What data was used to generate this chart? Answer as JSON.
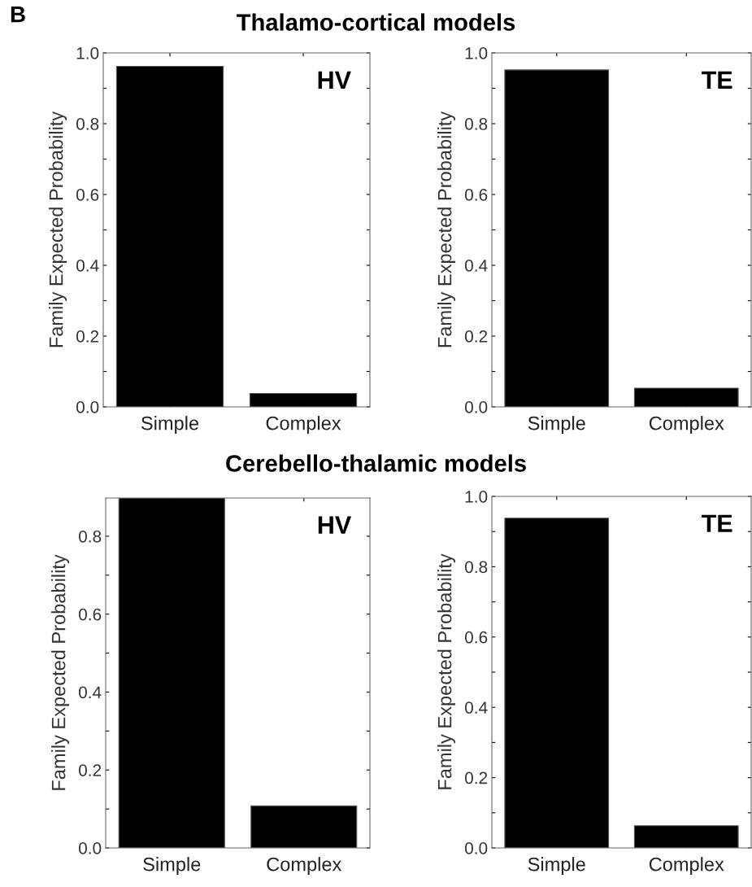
{
  "chart_data": [
    {
      "type": "bar",
      "title": "Thalamo-cortical models",
      "ylabel": "Family Expected Probability",
      "categories": [
        "Simple",
        "Complex"
      ],
      "values": [
        0.962,
        0.038
      ],
      "color": "#000000",
      "ylim": [
        0,
        1.0
      ],
      "yticks": [
        {
          "value": 0,
          "label": "0.0"
        },
        {
          "value": 0.1,
          "label": null
        },
        0.2,
        {
          "value": 0.3,
          "label": null
        },
        0.4,
        {
          "value": 0.5,
          "label": null
        },
        0.6,
        {
          "value": 0.7,
          "label": null
        },
        0.8,
        {
          "value": 0.9,
          "label": null
        },
        {
          "value": 1,
          "label": "1.0"
        }
      ],
      "annotations": [
        "B",
        "HV"
      ]
    },
    {
      "type": "bar",
      "ylabel": "Family Expected Probability",
      "categories": [
        "Simple",
        "Complex"
      ],
      "values": [
        0.952,
        0.053
      ],
      "color": "#000000",
      "ylim": [
        0,
        1.0
      ],
      "yticks": [
        {
          "value": 0,
          "label": "0.0"
        },
        {
          "value": 0.1,
          "label": null
        },
        0.2,
        {
          "value": 0.3,
          "label": null
        },
        0.4,
        {
          "value": 0.5,
          "label": null
        },
        0.6,
        {
          "value": 0.7,
          "label": null
        },
        0.8,
        {
          "value": 0.9,
          "label": null
        },
        {
          "value": 1,
          "label": "1.0"
        }
      ],
      "annotations": [
        "TE"
      ]
    },
    {
      "type": "bar",
      "title": "Cerebello-thalamic models",
      "ylabel": "Family Expected Probability",
      "categories": [
        "Simple",
        "Complex"
      ],
      "values": [
        0.898,
        0.108
      ],
      "color": "#000000",
      "ylim": [
        0,
        0.898
      ],
      "yticks": [
        {
          "value": 0,
          "label": "0.0"
        },
        {
          "value": 0.1,
          "label": null
        },
        0.2,
        {
          "value": 0.3,
          "label": null
        },
        0.4,
        {
          "value": 0.5,
          "label": null
        },
        0.6,
        {
          "value": 0.7,
          "label": null
        },
        0.8
      ],
      "annotations": [
        "HV"
      ]
    },
    {
      "type": "bar",
      "ylabel": "Family Expected Probability",
      "categories": [
        "Simple",
        "Complex"
      ],
      "values": [
        0.938,
        0.063
      ],
      "color": "#000000",
      "ylim": [
        0,
        1.0
      ],
      "yticks": [
        {
          "value": 0,
          "label": "0.0"
        },
        {
          "value": 0.1,
          "label": null
        },
        0.2,
        {
          "value": 0.3,
          "label": null
        },
        0.4,
        {
          "value": 0.5,
          "label": null
        },
        0.6,
        {
          "value": 0.7,
          "label": null
        },
        0.8,
        {
          "value": 0.9,
          "label": null
        },
        {
          "value": 1,
          "label": "1.0"
        }
      ],
      "annotations": [
        "TE"
      ]
    }
  ]
}
